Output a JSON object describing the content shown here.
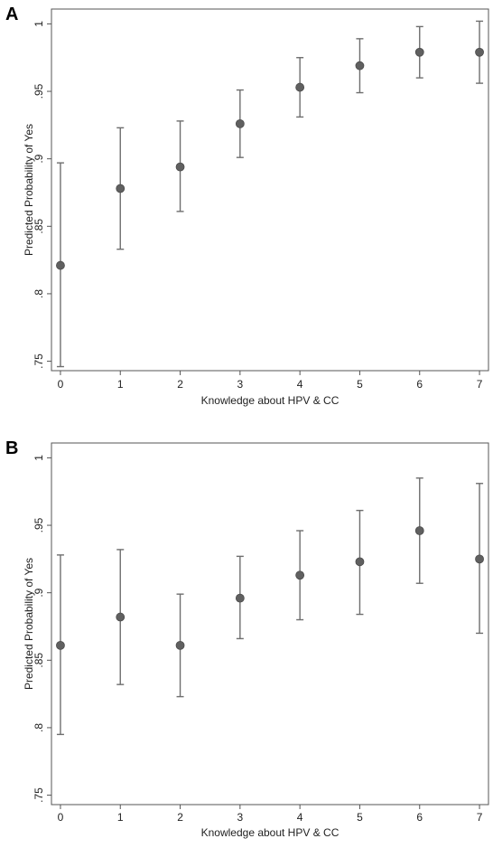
{
  "chart_data": [
    {
      "panel": "A",
      "type": "scatter",
      "subtype": "point-with-error-bars",
      "xlabel": "Knowledge about HPV & CC",
      "ylabel": "Predicted Probability of Yes",
      "x": [
        0,
        1,
        2,
        3,
        4,
        5,
        6,
        7
      ],
      "x_tick_labels": [
        "0",
        "1",
        "2",
        "3",
        "4",
        "5",
        "6",
        "7"
      ],
      "y_tick_labels": [
        ".75",
        ".8",
        ".85",
        ".9",
        ".95",
        "1"
      ],
      "y_ticks": [
        0.75,
        0.8,
        0.85,
        0.9,
        0.95,
        1.0
      ],
      "values": [
        0.821,
        0.878,
        0.894,
        0.926,
        0.953,
        0.969,
        0.979,
        0.979
      ],
      "ci_lower": [
        0.746,
        0.833,
        0.861,
        0.901,
        0.931,
        0.949,
        0.96,
        0.956
      ],
      "ci_upper": [
        0.897,
        0.923,
        0.928,
        0.951,
        0.975,
        0.989,
        0.998,
        1.002
      ],
      "xlim": [
        -0.15,
        7.15
      ],
      "ylim": [
        0.743,
        1.011
      ],
      "grid": false,
      "colors": {
        "point": "#606060",
        "bar": "#6e6e6e",
        "axis": "#555555"
      }
    },
    {
      "panel": "B",
      "type": "scatter",
      "subtype": "point-with-error-bars",
      "xlabel": "Knowledge about HPV & CC",
      "ylabel": "Predicted Probability of Yes",
      "x": [
        0,
        1,
        2,
        3,
        4,
        5,
        6,
        7
      ],
      "x_tick_labels": [
        "0",
        "1",
        "2",
        "3",
        "4",
        "5",
        "6",
        "7"
      ],
      "y_tick_labels": [
        ".75",
        ".8",
        ".85",
        ".9",
        ".95",
        "1"
      ],
      "y_ticks": [
        0.75,
        0.8,
        0.85,
        0.9,
        0.95,
        1.0
      ],
      "values": [
        0.861,
        0.882,
        0.861,
        0.896,
        0.913,
        0.923,
        0.946,
        0.925
      ],
      "ci_lower": [
        0.795,
        0.832,
        0.823,
        0.866,
        0.88,
        0.884,
        0.907,
        0.87
      ],
      "ci_upper": [
        0.928,
        0.932,
        0.899,
        0.927,
        0.946,
        0.961,
        0.985,
        0.981
      ],
      "xlim": [
        -0.15,
        7.15
      ],
      "ylim": [
        0.743,
        1.011
      ],
      "grid": false,
      "colors": {
        "point": "#606060",
        "bar": "#6e6e6e",
        "axis": "#555555"
      }
    }
  ]
}
